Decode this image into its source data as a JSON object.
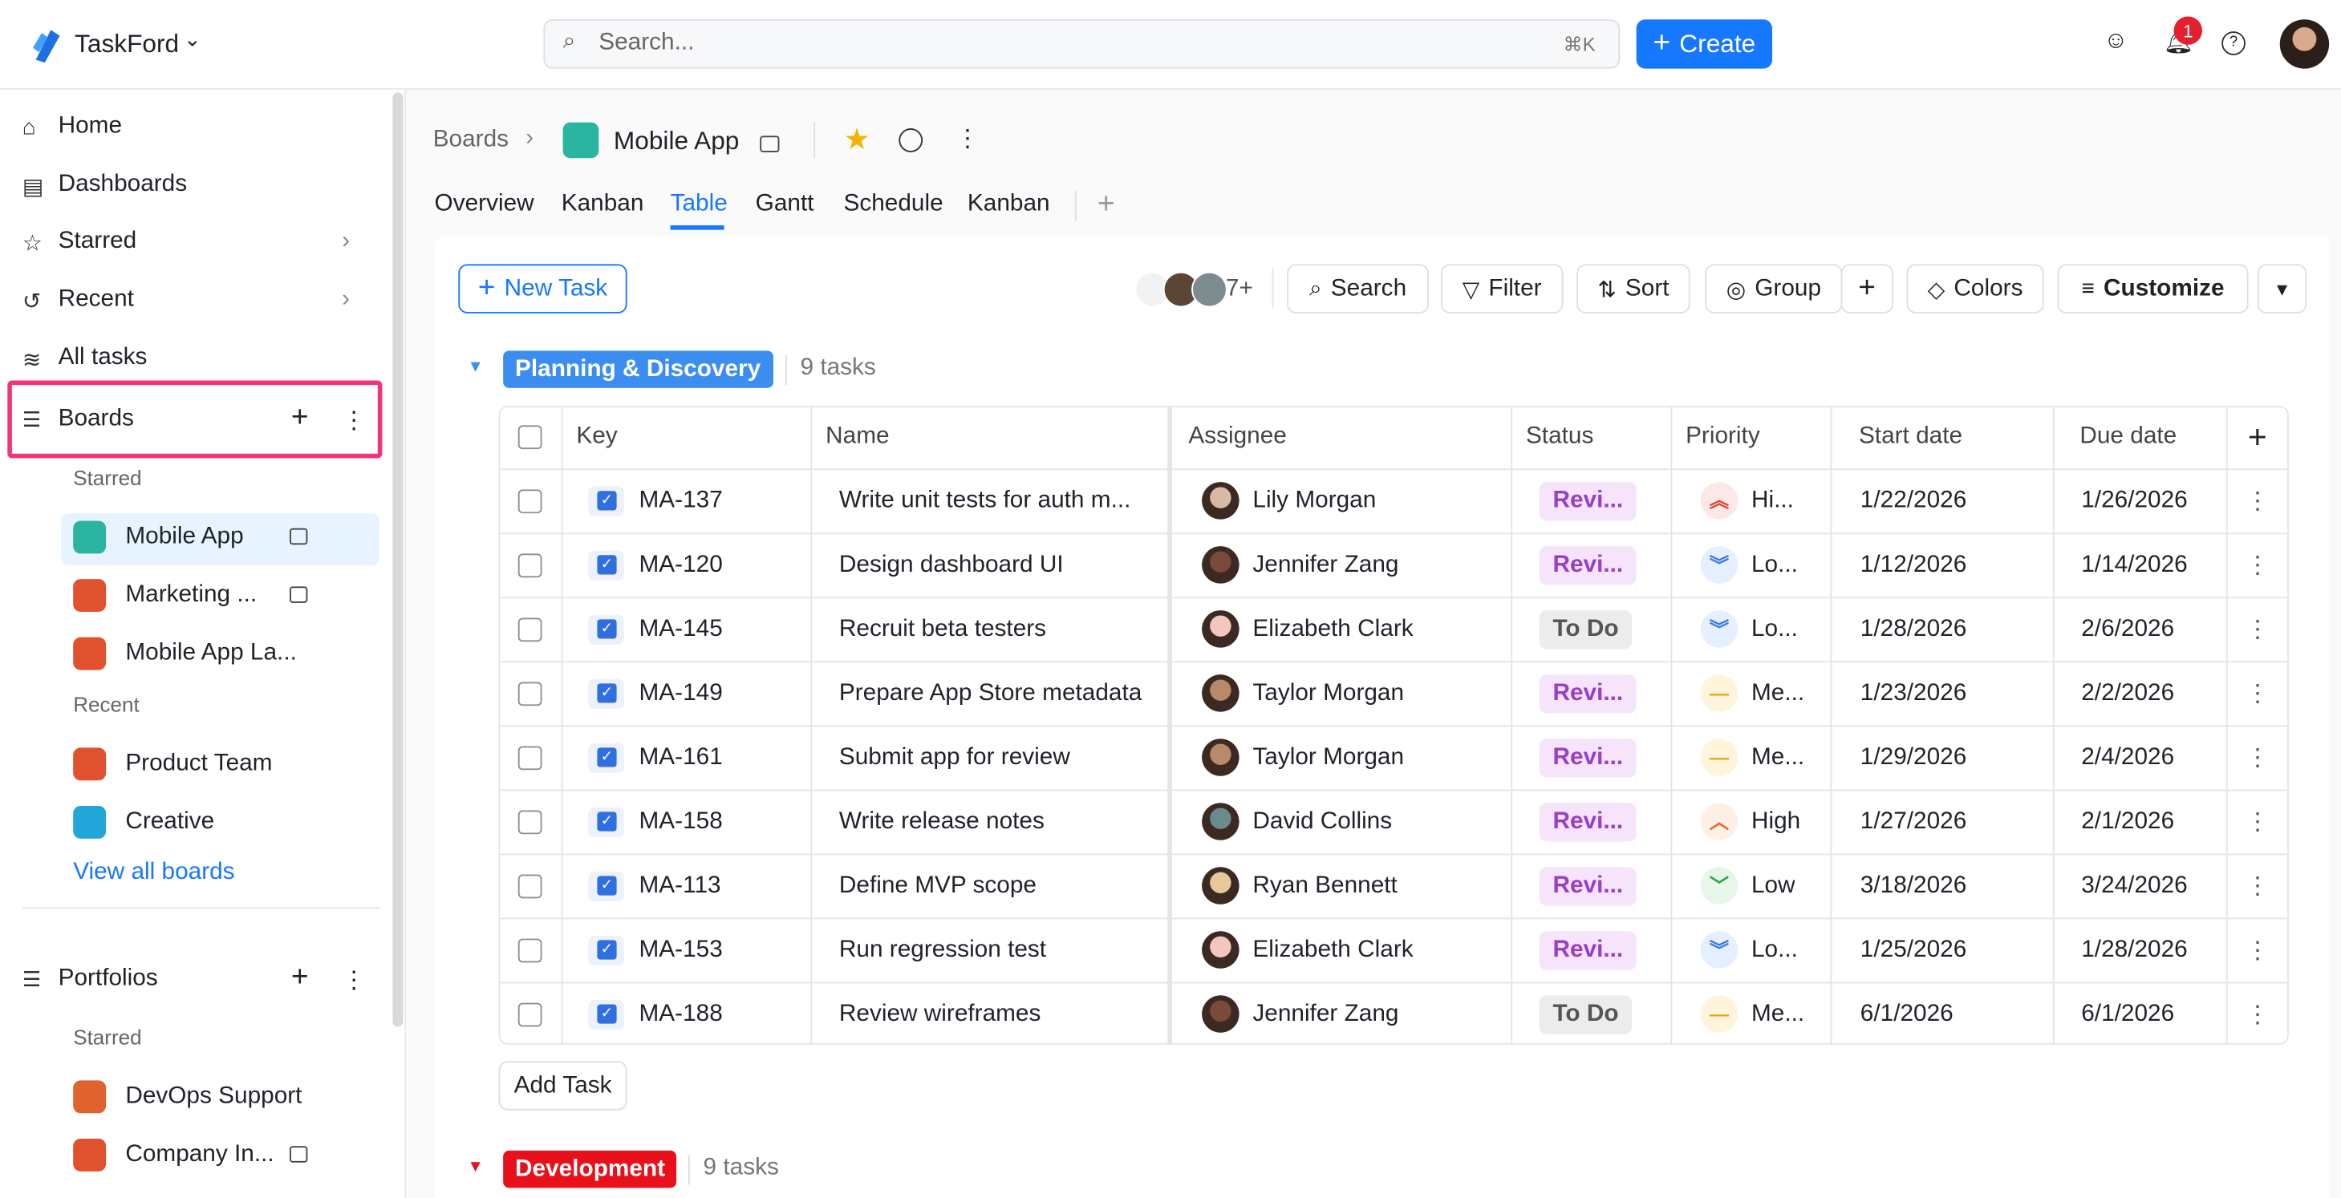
{
  "app": {
    "name": "TaskFord",
    "search_placeholder": "Search...",
    "shortcut": "⌘K",
    "create": "Create",
    "notifications": "1"
  },
  "sidebar": {
    "nav": [
      "Home",
      "Dashboards",
      "Starred",
      "Recent",
      "All tasks"
    ],
    "boards": {
      "title": "Boards",
      "starred_label": "Starred",
      "starred": [
        "Mobile App",
        "Marketing ...",
        "Mobile App La..."
      ],
      "recent_label": "Recent",
      "recent": [
        "Product Team",
        "Creative"
      ],
      "view_all": "View all boards"
    },
    "portfolios": {
      "title": "Portfolios",
      "starred_label": "Starred",
      "starred": [
        "DevOps Support",
        "Company In..."
      ]
    }
  },
  "breadcrumb": {
    "root": "Boards",
    "current": "Mobile App"
  },
  "tabs": [
    "Overview",
    "Kanban",
    "Table",
    "Gantt",
    "Schedule",
    "Kanban"
  ],
  "toolbar": {
    "new_task": "New Task",
    "members_more": "7+",
    "buttons": [
      "Search",
      "Filter",
      "Sort",
      "Group",
      "Colors",
      "Customize"
    ]
  },
  "groups": [
    {
      "name": "Planning & Discovery",
      "count": "9 tasks"
    },
    {
      "name": "Development",
      "count": "9 tasks"
    }
  ],
  "table": {
    "columns": [
      "Key",
      "Name",
      "Assignee",
      "Status",
      "Priority",
      "Start date",
      "Due date"
    ],
    "rows": [
      [
        "MA-137",
        "Write unit tests for auth m...",
        "Lily Morgan",
        "Revi...",
        "Hi...",
        "1/22/2026",
        "1/26/2026"
      ],
      [
        "MA-120",
        "Design dashboard UI",
        "Jennifer Zang",
        "Revi...",
        "Lo...",
        "1/12/2026",
        "1/14/2026"
      ],
      [
        "MA-145",
        "Recruit beta testers",
        "Elizabeth Clark",
        "To Do",
        "Lo...",
        "1/28/2026",
        "2/6/2026"
      ],
      [
        "MA-149",
        "Prepare App Store metadata",
        "Taylor Morgan",
        "Revi...",
        "Me...",
        "1/23/2026",
        "2/2/2026"
      ],
      [
        "MA-161",
        "Submit app for review",
        "Taylor Morgan",
        "Revi...",
        "Me...",
        "1/29/2026",
        "2/4/2026"
      ],
      [
        "MA-158",
        "Write release notes",
        "David Collins",
        "Revi...",
        "High",
        "1/27/2026",
        "2/1/2026"
      ],
      [
        "MA-113",
        "Define MVP scope",
        "Ryan Bennett",
        "Revi...",
        "Low",
        "3/18/2026",
        "3/24/2026"
      ],
      [
        "MA-153",
        "Run regression test",
        "Elizabeth Clark",
        "Revi...",
        "Lo...",
        "1/25/2026",
        "1/28/2026"
      ],
      [
        "MA-188",
        "Review wireframes",
        "Jennifer Zang",
        "To Do",
        "Me...",
        "6/1/2026",
        "6/1/2026"
      ]
    ]
  },
  "add_task": "Add Task"
}
